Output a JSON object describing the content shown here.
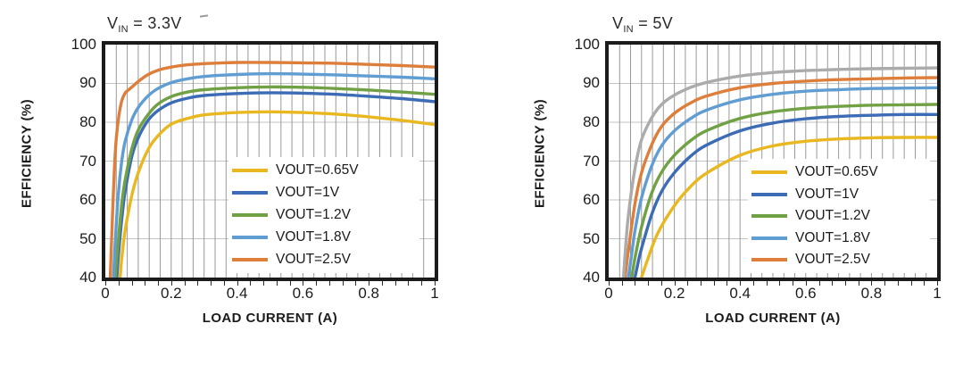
{
  "page": {
    "background": "#ffffff"
  },
  "chart_data": [
    {
      "type": "line",
      "title": {
        "v": "V",
        "sub": "IN",
        "rest": " = 3.3V"
      },
      "xlabel": "LOAD CURRENT  (A)",
      "ylabel": "EFFICIENCY  (%)",
      "xlim": [
        0,
        1
      ],
      "ylim": [
        40,
        100
      ],
      "x_tick_labels": [
        "0",
        "0.2",
        "0.4",
        "0.6",
        "0.8",
        "1"
      ],
      "x_tick_values": [
        0,
        0.2,
        0.4,
        0.6,
        0.8,
        1
      ],
      "y_tick_labels": [
        "100",
        "90",
        "80",
        "70",
        "60",
        "50",
        "40"
      ],
      "y_tick_values": [
        100,
        90,
        80,
        70,
        60,
        50,
        40
      ],
      "grid": {
        "vertical_divisions": 30,
        "horizontal_step": 10,
        "vertical_color": "#9a9a9a",
        "horizontal_color": "#c3c3c3",
        "minor_tick_step": 0.04
      },
      "legend_position": "inside-lower-right",
      "series": [
        {
          "name": "VOUT=0.65V",
          "color": "#E9B71F",
          "in_legend": true,
          "points": [
            [
              0.045,
              40
            ],
            [
              0.05,
              45
            ],
            [
              0.06,
              52
            ],
            [
              0.08,
              61
            ],
            [
              0.1,
              67
            ],
            [
              0.13,
              73
            ],
            [
              0.16,
              76.5
            ],
            [
              0.2,
              79.5
            ],
            [
              0.25,
              81
            ],
            [
              0.3,
              81.9
            ],
            [
              0.4,
              82.5
            ],
            [
              0.5,
              82.7
            ],
            [
              0.6,
              82.5
            ],
            [
              0.7,
              82.1
            ],
            [
              0.8,
              81.4
            ],
            [
              0.9,
              80.5
            ],
            [
              1.0,
              79.4
            ]
          ]
        },
        {
          "name": "VOUT=1V",
          "color": "#3C6CB5",
          "in_legend": true,
          "points": [
            [
              0.035,
              40
            ],
            [
              0.04,
              46
            ],
            [
              0.05,
              55
            ],
            [
              0.06,
              62
            ],
            [
              0.08,
              71
            ],
            [
              0.1,
              76
            ],
            [
              0.13,
              80.5
            ],
            [
              0.16,
              83
            ],
            [
              0.2,
              85
            ],
            [
              0.25,
              86.2
            ],
            [
              0.3,
              86.9
            ],
            [
              0.4,
              87.4
            ],
            [
              0.5,
              87.6
            ],
            [
              0.6,
              87.5
            ],
            [
              0.7,
              87.2
            ],
            [
              0.8,
              86.7
            ],
            [
              0.9,
              86.1
            ],
            [
              1.0,
              85.3
            ]
          ]
        },
        {
          "name": "VOUT=1.2V",
          "color": "#70A145",
          "in_legend": true,
          "points": [
            [
              0.03,
              40
            ],
            [
              0.04,
              50
            ],
            [
              0.05,
              59
            ],
            [
              0.06,
              65
            ],
            [
              0.08,
              73
            ],
            [
              0.1,
              78
            ],
            [
              0.13,
              82
            ],
            [
              0.16,
              84.7
            ],
            [
              0.2,
              86.6
            ],
            [
              0.25,
              87.8
            ],
            [
              0.3,
              88.4
            ],
            [
              0.4,
              88.9
            ],
            [
              0.5,
              89.1
            ],
            [
              0.6,
              89
            ],
            [
              0.7,
              88.7
            ],
            [
              0.8,
              88.3
            ],
            [
              0.9,
              87.8
            ],
            [
              1.0,
              87.2
            ]
          ]
        },
        {
          "name": "VOUT=1.8V",
          "color": "#5F9DD3",
          "in_legend": true,
          "points": [
            [
              0.025,
              40
            ],
            [
              0.03,
              49
            ],
            [
              0.04,
              62
            ],
            [
              0.05,
              70
            ],
            [
              0.06,
              75
            ],
            [
              0.08,
              80.5
            ],
            [
              0.1,
              83.8
            ],
            [
              0.13,
              86.8
            ],
            [
              0.16,
              88.7
            ],
            [
              0.2,
              90.2
            ],
            [
              0.25,
              91.2
            ],
            [
              0.3,
              91.8
            ],
            [
              0.4,
              92.3
            ],
            [
              0.5,
              92.5
            ],
            [
              0.6,
              92.4
            ],
            [
              0.7,
              92.2
            ],
            [
              0.8,
              91.9
            ],
            [
              0.9,
              91.6
            ],
            [
              1.0,
              91.2
            ]
          ]
        },
        {
          "name": "VOUT=2.5V",
          "color": "#DD7E3B",
          "in_legend": true,
          "points": [
            [
              0.015,
              40
            ],
            [
              0.02,
              52
            ],
            [
              0.03,
              72
            ],
            [
              0.04,
              81
            ],
            [
              0.05,
              85.5
            ],
            [
              0.06,
              87.5
            ],
            [
              0.07,
              88.3
            ],
            [
              0.08,
              89
            ],
            [
              0.1,
              90.5
            ],
            [
              0.13,
              92.3
            ],
            [
              0.16,
              93.4
            ],
            [
              0.2,
              94.2
            ],
            [
              0.25,
              94.8
            ],
            [
              0.3,
              95.1
            ],
            [
              0.4,
              95.4
            ],
            [
              0.5,
              95.4
            ],
            [
              0.6,
              95.3
            ],
            [
              0.7,
              95.2
            ],
            [
              0.8,
              94.9
            ],
            [
              0.9,
              94.6
            ],
            [
              1.0,
              94.2
            ]
          ]
        }
      ]
    },
    {
      "type": "line",
      "title": {
        "v": "V",
        "sub": "IN",
        "rest": " = 5V"
      },
      "xlabel": "LOAD CURRENT  (A)",
      "ylabel": "EFFICIENCY  (%)",
      "xlim": [
        0,
        1
      ],
      "ylim": [
        40,
        100
      ],
      "x_tick_labels": [
        "0",
        "0.2",
        "0.4",
        "0.6",
        "0.8",
        "1"
      ],
      "x_tick_values": [
        0,
        0.2,
        0.4,
        0.6,
        0.8,
        1
      ],
      "y_tick_labels": [
        "100",
        "90",
        "80",
        "70",
        "60",
        "50",
        "40"
      ],
      "y_tick_values": [
        100,
        90,
        80,
        70,
        60,
        50,
        40
      ],
      "grid": {
        "vertical_divisions": 30,
        "horizontal_step": 10,
        "vertical_color": "#9a9a9a",
        "horizontal_color": "#c3c3c3",
        "minor_tick_step": 0.04
      },
      "legend_position": "inside-lower-right",
      "series": [
        {
          "name": "VOUT=0.65V",
          "color": "#E9B71F",
          "in_legend": true,
          "points": [
            [
              0.1,
              40
            ],
            [
              0.12,
              45
            ],
            [
              0.15,
              51.5
            ],
            [
              0.2,
              58.5
            ],
            [
              0.25,
              63.5
            ],
            [
              0.3,
              67
            ],
            [
              0.4,
              71.5
            ],
            [
              0.5,
              73.9
            ],
            [
              0.6,
              75.1
            ],
            [
              0.7,
              75.7
            ],
            [
              0.8,
              76
            ],
            [
              0.9,
              76.1
            ],
            [
              1.0,
              76.1
            ]
          ]
        },
        {
          "name": "VOUT=1V",
          "color": "#3C6CB5",
          "in_legend": true,
          "points": [
            [
              0.08,
              40
            ],
            [
              0.09,
              44
            ],
            [
              0.1,
              47.5
            ],
            [
              0.13,
              56
            ],
            [
              0.16,
              62
            ],
            [
              0.2,
              67
            ],
            [
              0.25,
              71.3
            ],
            [
              0.3,
              74.2
            ],
            [
              0.4,
              77.8
            ],
            [
              0.5,
              79.8
            ],
            [
              0.6,
              80.9
            ],
            [
              0.7,
              81.5
            ],
            [
              0.8,
              81.8
            ],
            [
              0.9,
              82
            ],
            [
              1.0,
              82
            ]
          ]
        },
        {
          "name": "VOUT=1.2V",
          "color": "#70A145",
          "in_legend": true,
          "points": [
            [
              0.07,
              40
            ],
            [
              0.08,
              45
            ],
            [
              0.1,
              53
            ],
            [
              0.13,
              61.5
            ],
            [
              0.16,
              67
            ],
            [
              0.2,
              71.5
            ],
            [
              0.25,
              75.3
            ],
            [
              0.3,
              77.9
            ],
            [
              0.4,
              81
            ],
            [
              0.5,
              82.7
            ],
            [
              0.6,
              83.6
            ],
            [
              0.7,
              84.1
            ],
            [
              0.8,
              84.4
            ],
            [
              0.9,
              84.5
            ],
            [
              1.0,
              84.6
            ]
          ]
        },
        {
          "name": "VOUT=1.8V",
          "color": "#5F9DD3",
          "in_legend": true,
          "points": [
            [
              0.06,
              40
            ],
            [
              0.07,
              46
            ],
            [
              0.08,
              52
            ],
            [
              0.1,
              60.5
            ],
            [
              0.13,
              68.5
            ],
            [
              0.16,
              73.8
            ],
            [
              0.2,
              77.8
            ],
            [
              0.25,
              81
            ],
            [
              0.3,
              83.2
            ],
            [
              0.4,
              85.8
            ],
            [
              0.5,
              87.2
            ],
            [
              0.6,
              88
            ],
            [
              0.7,
              88.4
            ],
            [
              0.8,
              88.7
            ],
            [
              0.9,
              88.8
            ],
            [
              1.0,
              88.9
            ]
          ]
        },
        {
          "name": "VOUT=2.5V",
          "color": "#DD7E3B",
          "in_legend": true,
          "points": [
            [
              0.05,
              40
            ],
            [
              0.06,
              47
            ],
            [
              0.08,
              59
            ],
            [
              0.1,
              67
            ],
            [
              0.13,
              74
            ],
            [
              0.16,
              78.8
            ],
            [
              0.2,
              82.3
            ],
            [
              0.25,
              85
            ],
            [
              0.3,
              86.8
            ],
            [
              0.4,
              88.9
            ],
            [
              0.5,
              90
            ],
            [
              0.6,
              90.6
            ],
            [
              0.7,
              91
            ],
            [
              0.8,
              91.2
            ],
            [
              0.9,
              91.4
            ],
            [
              1.0,
              91.5
            ]
          ]
        },
        {
          "name": "",
          "color": "#ABABAB",
          "in_legend": false,
          "points": [
            [
              0.045,
              40
            ],
            [
              0.05,
              46
            ],
            [
              0.06,
              56
            ],
            [
              0.08,
              68
            ],
            [
              0.1,
              75.5
            ],
            [
              0.13,
              81
            ],
            [
              0.16,
              84.5
            ],
            [
              0.2,
              87
            ],
            [
              0.25,
              89
            ],
            [
              0.3,
              90.3
            ],
            [
              0.4,
              91.9
            ],
            [
              0.5,
              92.8
            ],
            [
              0.6,
              93.3
            ],
            [
              0.7,
              93.6
            ],
            [
              0.8,
              93.8
            ],
            [
              0.9,
              93.9
            ],
            [
              1.0,
              94
            ]
          ]
        }
      ]
    }
  ]
}
